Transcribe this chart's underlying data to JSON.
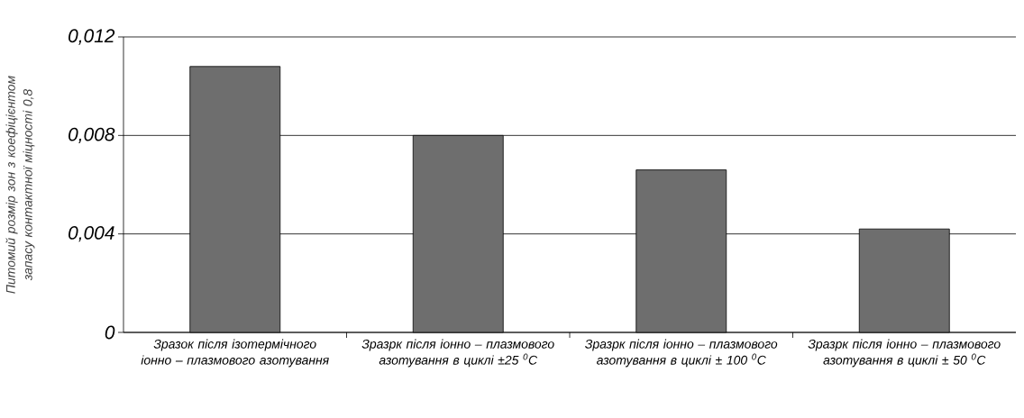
{
  "chart_data": {
    "type": "bar",
    "ylabel": "Питомий розмір зон з коефіцієнтом запасу контактної міцності 0,8",
    "categories": [
      "Зразок після ізотермічного іонно – плазмового азотування",
      "Зразрк після іонно – плазмового азотування в циклі ±25 $^{0}$С",
      "Зразрк після іонно – плазмового азотування в циклі ± 100 $^{0}$С",
      "Зразрк після іонно – плазмового азотування в циклі ± 50 $^{0}$С"
    ],
    "values": [
      0.0108,
      0.008,
      0.0066,
      0.0042
    ],
    "color": "#6e6e6e",
    "ylim": [
      0,
      0.012
    ],
    "yticks": [
      0,
      {
        "value": 0.004,
        "label": "0,004"
      },
      {
        "value": 0.008,
        "label": "0,008"
      },
      {
        "value": 0.012,
        "label": "0,012"
      }
    ],
    "grid": "y"
  }
}
